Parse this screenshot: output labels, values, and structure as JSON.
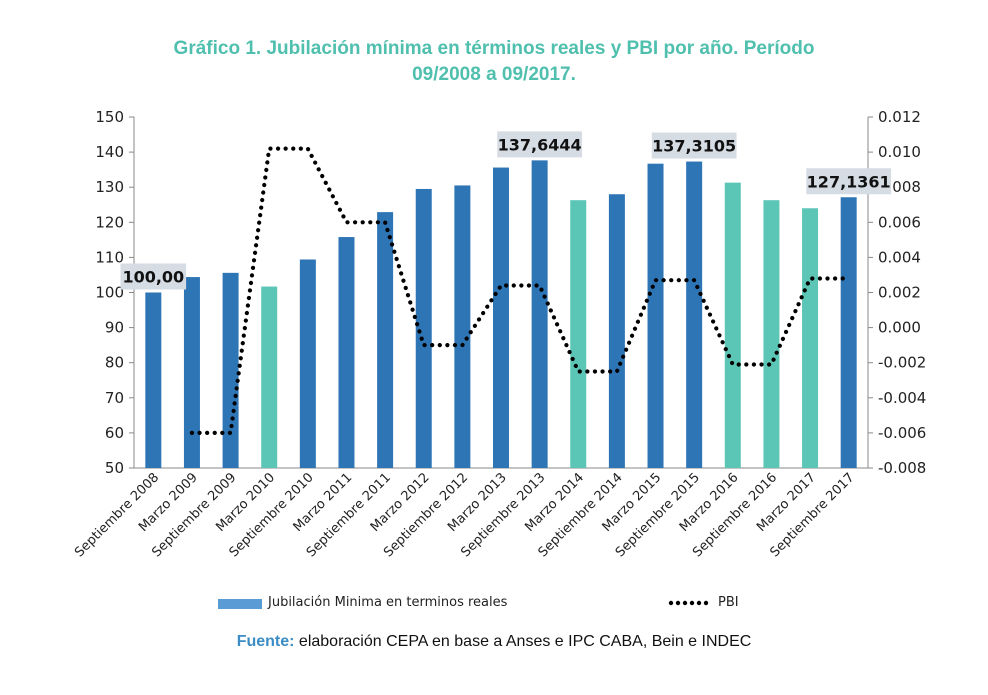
{
  "title_line1": "Gráfico 1. Jubilación mínima en términos reales y PBI por año. Período",
  "title_line2": "09/2008 a 09/2017.",
  "legend": {
    "bar_label": "Jubilación Minima en terminos reales",
    "line_label": "PBI"
  },
  "source": {
    "label": "Fuente:",
    "text": " elaboración CEPA en base a Anses e IPC CABA, Bein e INDEC"
  },
  "colors": {
    "title": "#4fbfae",
    "bar_dark": "#2e75b6",
    "bar_teal": "#5cc6b6",
    "legend_bar": "#5b9bd5",
    "line": "#000000",
    "callout_bg": "#d6dce4"
  },
  "chart_data": {
    "type": "bar",
    "categories": [
      "Septiembre 2008",
      "Marzo 2009",
      "Septiembre 2009",
      "Marzo 2010",
      "Septiembre 2010",
      "Marzo 2011",
      "Septiembre 2011",
      "Marzo 2012",
      "Septiembre 2012",
      "Marzo 2013",
      "Septiembre 2013",
      "Marzo 2014",
      "Septiembre 2014",
      "Marzo 2015",
      "Septiembre 2015",
      "Marzo 2016",
      "Septiembre 2016",
      "Marzo 2017",
      "Septiembre 2017"
    ],
    "series": [
      {
        "name": "Jubilación Minima en terminos reales",
        "type": "bar",
        "axis": "left",
        "values": [
          100.0,
          104.4,
          105.6,
          101.7,
          109.4,
          115.8,
          122.9,
          129.5,
          130.5,
          135.6,
          137.6444,
          126.3,
          128.0,
          136.7,
          137.3105,
          131.3,
          126.3,
          124.0,
          127.1361
        ],
        "highlight_color": [
          "dark",
          "dark",
          "dark",
          "teal",
          "dark",
          "dark",
          "dark",
          "dark",
          "dark",
          "dark",
          "dark",
          "teal",
          "dark",
          "dark",
          "dark",
          "teal",
          "teal",
          "teal",
          "dark"
        ]
      },
      {
        "name": "PBI",
        "type": "line",
        "style": "dotted",
        "axis": "right",
        "values": [
          null,
          -0.006,
          -0.006,
          0.0102,
          0.0102,
          0.006,
          0.006,
          -0.001,
          -0.001,
          0.0024,
          0.0024,
          -0.0025,
          -0.0025,
          0.0027,
          0.0027,
          -0.0021,
          -0.0021,
          0.0028,
          0.0028
        ]
      }
    ],
    "y_left": {
      "min": 50,
      "max": 150,
      "step": 10,
      "ticks": [
        "50",
        "60",
        "70",
        "80",
        "90",
        "100",
        "110",
        "120",
        "130",
        "140",
        "150"
      ]
    },
    "y_right": {
      "min": -0.008,
      "max": 0.012,
      "step": 0.002,
      "ticks": [
        "-0.008",
        "-0.006",
        "-0.004",
        "-0.002",
        "0.000",
        "0.002",
        "0.004",
        "0.006",
        "0.008",
        "0.010",
        "0.012"
      ]
    },
    "annotations": [
      {
        "index": 0,
        "text": "100,00"
      },
      {
        "index": 10,
        "text": "137,6444"
      },
      {
        "index": 14,
        "text": "137,3105"
      },
      {
        "index": 18,
        "text": "127,1361"
      }
    ],
    "grid": false,
    "legend_position": "bottom"
  }
}
